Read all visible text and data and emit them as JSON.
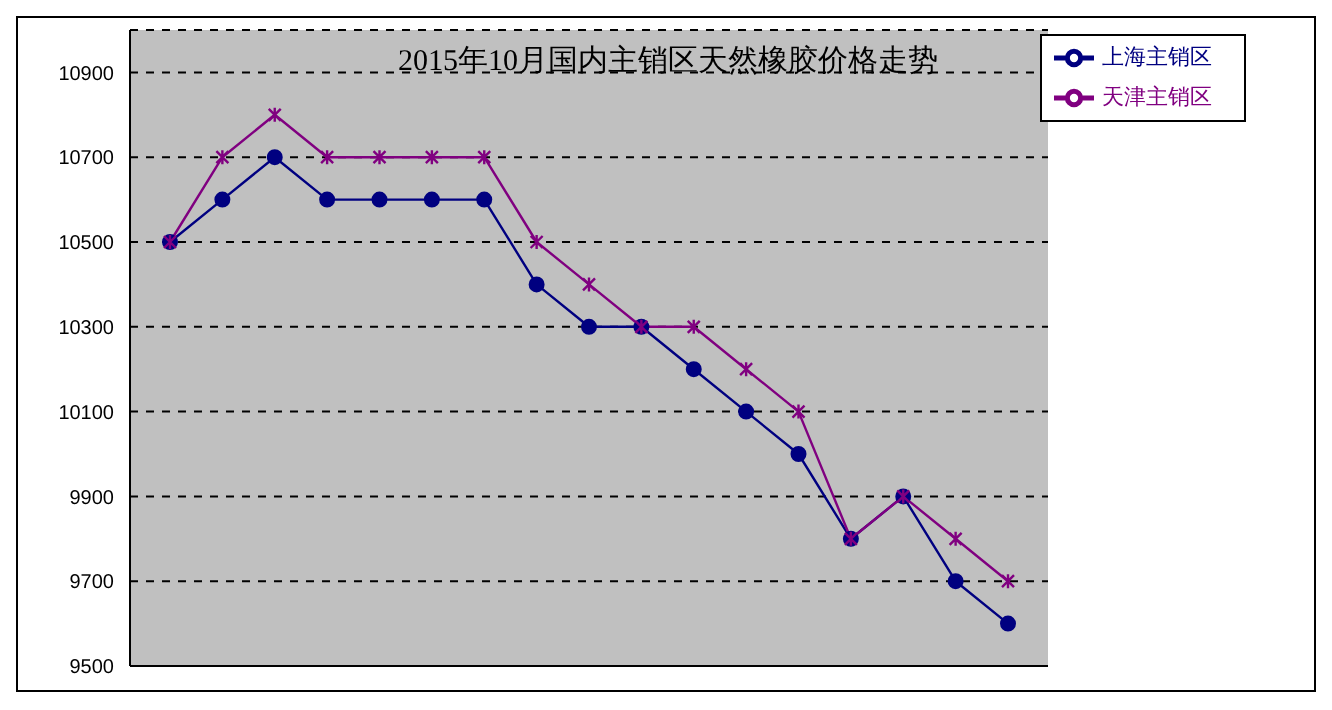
{
  "chart_data": {
    "type": "line",
    "title": "2015年10月国内主销区天然橡胶价格走势",
    "categories": [
      null,
      null,
      null,
      null,
      null,
      null,
      null,
      null,
      null,
      null,
      null,
      null,
      null,
      null,
      null,
      null,
      null
    ],
    "series": [
      {
        "name": "上海主销区",
        "color": "#000080",
        "marker": "circle",
        "values": [
          10500,
          10600,
          10700,
          10600,
          10600,
          10600,
          10600,
          10400,
          10300,
          10300,
          10200,
          10100,
          10000,
          9800,
          9900,
          9700,
          9600
        ]
      },
      {
        "name": "天津主销区",
        "color": "#800080",
        "marker": "cross",
        "values": [
          10500,
          10700,
          10800,
          10700,
          10700,
          10700,
          10700,
          10500,
          10400,
          10300,
          10300,
          10200,
          10100,
          9800,
          9900,
          9800,
          9700
        ]
      }
    ],
    "ylim": [
      9500,
      11000
    ],
    "yticks": [
      9500,
      9700,
      9900,
      10100,
      10300,
      10500,
      10700,
      10900
    ],
    "grid": "y",
    "legend": "top right",
    "tick_labels": "y"
  }
}
